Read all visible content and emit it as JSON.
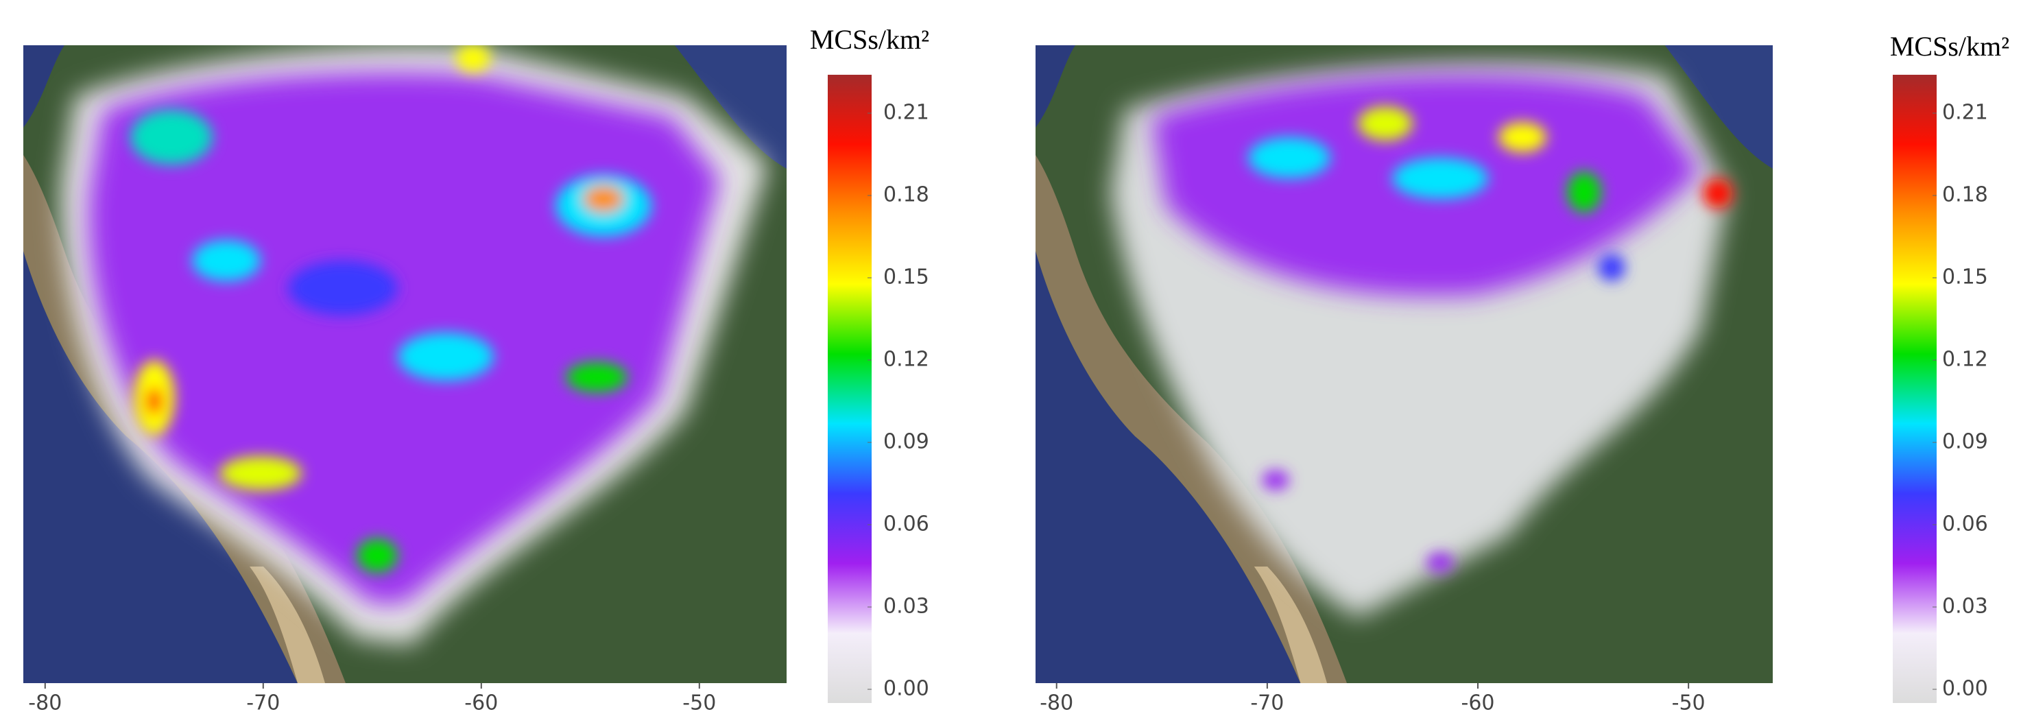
{
  "chart_data": [
    {
      "type": "heatmap",
      "xlim": [
        -81,
        -46
      ],
      "xticks": [
        -80,
        -70,
        -60,
        -50
      ],
      "colorbar": {
        "title": "MCSs/km²",
        "lim": [
          -0.005,
          0.224
        ],
        "ticks": [
          {
            "value": 0,
            "label": "0.00"
          },
          0.03,
          0.06,
          0.09,
          0.12,
          0.15,
          0.18,
          0.21
        ],
        "colors": [
          "#dcdcdc",
          "#f4eefa",
          "#a020f0",
          "#3b3bff",
          "#00e5ff",
          "#00e000",
          "#ffff00",
          "#ff9000",
          "#ff1000",
          "#a52a2a"
        ]
      }
    },
    {
      "type": "heatmap",
      "xlim": [
        -81,
        -46
      ],
      "xticks": [
        -80,
        -70,
        -60,
        -50
      ],
      "colorbar": {
        "title": "MCSs/km²",
        "lim": [
          -0.005,
          0.224
        ],
        "ticks": [
          {
            "value": 0,
            "label": "0.00"
          },
          0.03,
          0.06,
          0.09,
          0.12,
          0.15,
          0.18,
          0.21
        ],
        "colors": [
          "#dcdcdc",
          "#f4eefa",
          "#a020f0",
          "#3b3bff",
          "#00e5ff",
          "#00e000",
          "#ffff00",
          "#ff9000",
          "#ff1000",
          "#a52a2a"
        ]
      }
    }
  ]
}
